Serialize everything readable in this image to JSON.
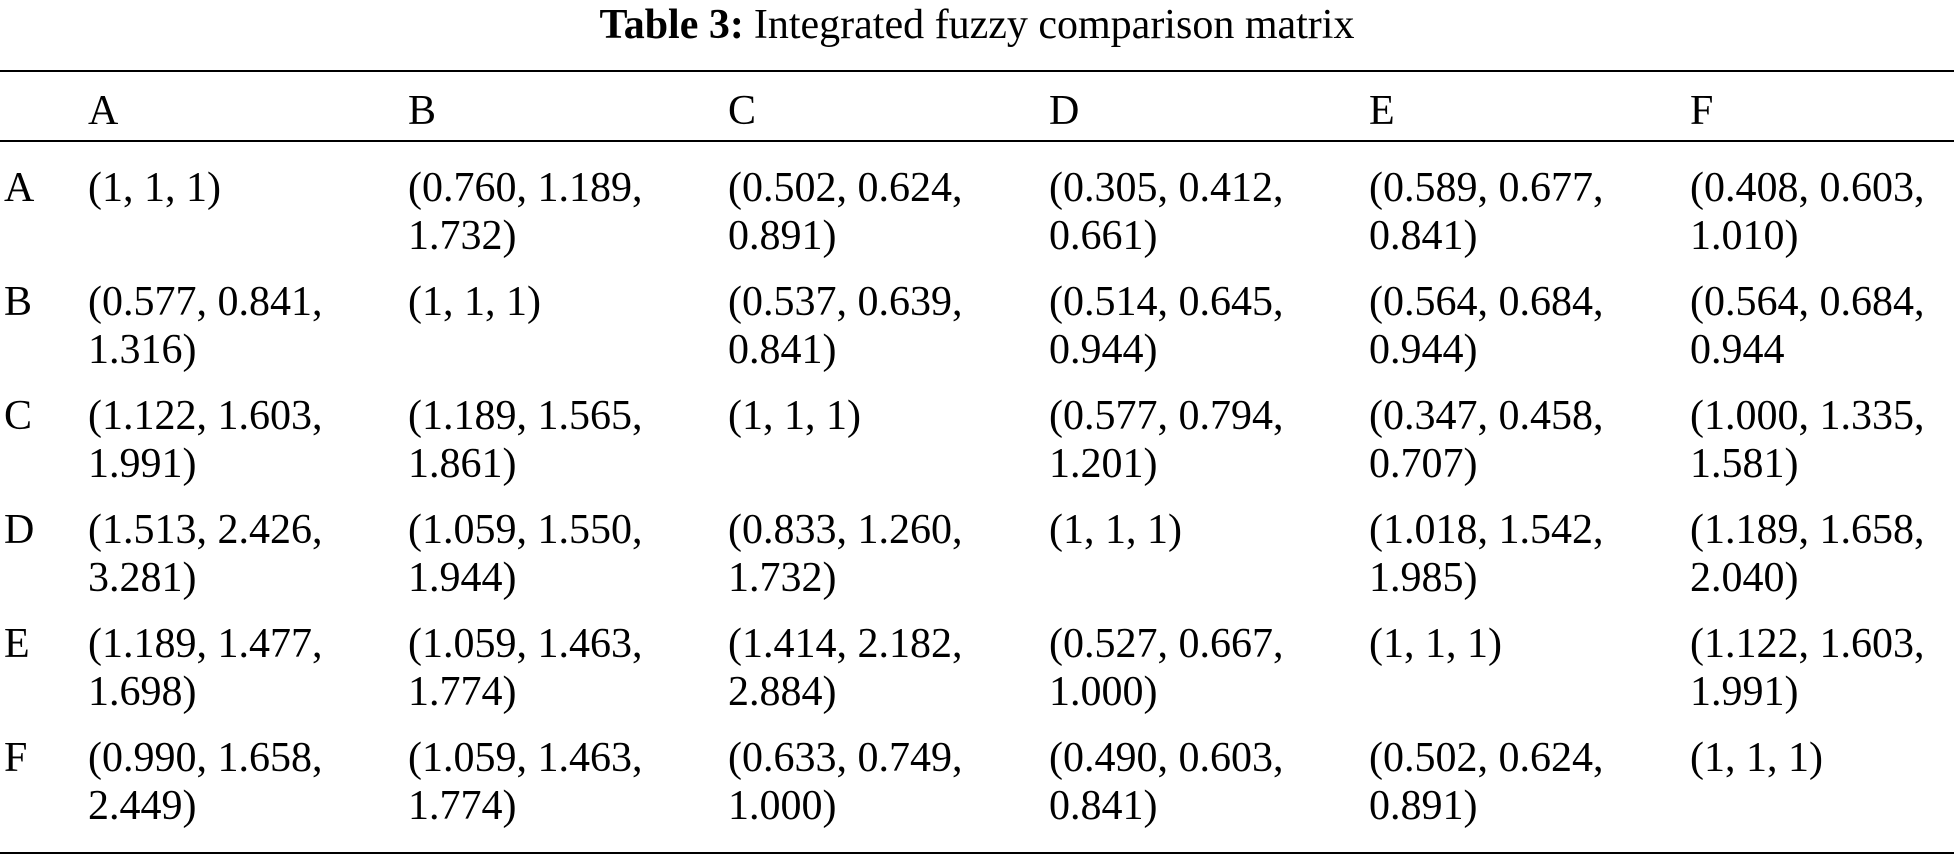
{
  "caption": {
    "label": "Table 3:",
    "title": "Integrated fuzzy comparison matrix"
  },
  "table": {
    "columns": [
      "A",
      "B",
      "C",
      "D",
      "E",
      "F"
    ],
    "rows": [
      {
        "label": "A",
        "cells": [
          [
            "(1, 1, 1)",
            ""
          ],
          [
            "(0.760, 1.189,",
            "1.732)"
          ],
          [
            "(0.502, 0.624,",
            "0.891)"
          ],
          [
            "(0.305, 0.412,",
            "0.661)"
          ],
          [
            "(0.589, 0.677,",
            "0.841)"
          ],
          [
            "(0.408, 0.603,",
            "1.010)"
          ]
        ]
      },
      {
        "label": "B",
        "cells": [
          [
            "(0.577, 0.841,",
            "1.316)"
          ],
          [
            "(1, 1, 1)",
            ""
          ],
          [
            "(0.537, 0.639,",
            "0.841)"
          ],
          [
            "(0.514, 0.645,",
            "0.944)"
          ],
          [
            "(0.564, 0.684,",
            "0.944)"
          ],
          [
            "(0.564, 0.684,",
            "0.944"
          ]
        ]
      },
      {
        "label": "C",
        "cells": [
          [
            "(1.122, 1.603,",
            "1.991)"
          ],
          [
            "(1.189, 1.565,",
            "1.861)"
          ],
          [
            "(1, 1, 1)",
            ""
          ],
          [
            "(0.577, 0.794,",
            "1.201)"
          ],
          [
            "(0.347, 0.458,",
            "0.707)"
          ],
          [
            "(1.000, 1.335,",
            "1.581)"
          ]
        ]
      },
      {
        "label": "D",
        "cells": [
          [
            "(1.513, 2.426,",
            "3.281)"
          ],
          [
            "(1.059, 1.550,",
            "1.944)"
          ],
          [
            "(0.833, 1.260,",
            "1.732)"
          ],
          [
            "(1, 1, 1)",
            ""
          ],
          [
            "(1.018, 1.542,",
            "1.985)"
          ],
          [
            "(1.189, 1.658,",
            "2.040)"
          ]
        ]
      },
      {
        "label": "E",
        "cells": [
          [
            "(1.189, 1.477,",
            "1.698)"
          ],
          [
            "(1.059, 1.463,",
            "1.774)"
          ],
          [
            "(1.414, 2.182,",
            "2.884)"
          ],
          [
            "(0.527, 0.667,",
            "1.000)"
          ],
          [
            "(1, 1, 1)",
            ""
          ],
          [
            "(1.122, 1.603,",
            "1.991)"
          ]
        ]
      },
      {
        "label": "F",
        "cells": [
          [
            "(0.990, 1.658,",
            "2.449)"
          ],
          [
            "(1.059, 1.463,",
            "1.774)"
          ],
          [
            "(0.633, 0.749,",
            "1.000)"
          ],
          [
            "(0.490, 0.603,",
            "0.841)"
          ],
          [
            "(0.502, 0.624,",
            "0.891)"
          ],
          [
            "(1, 1, 1)",
            ""
          ]
        ]
      }
    ]
  }
}
